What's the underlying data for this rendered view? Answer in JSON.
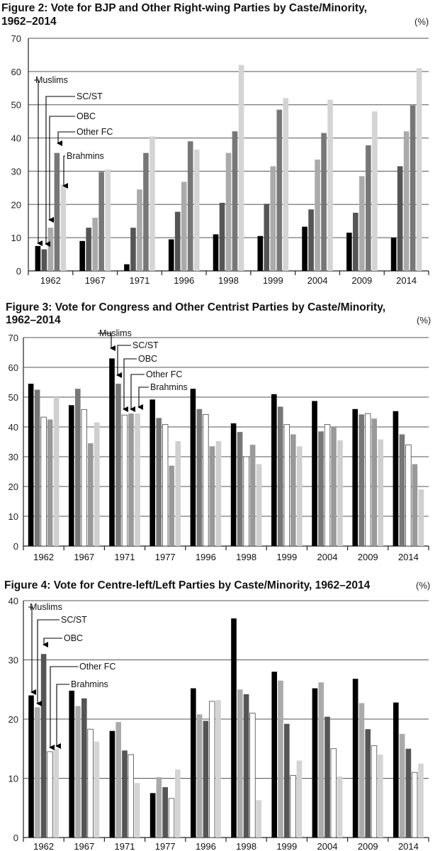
{
  "series_names": [
    "Muslims",
    "SC/ST",
    "OBC",
    "Other FC",
    "Brahmins"
  ],
  "chart_data": [
    {
      "type": "bar",
      "title_line1": "Figure 2: Vote for BJP and Other Right-wing Parties by Caste/Minority,",
      "title_line2": "1962–2014",
      "unit": "(%)",
      "ylim": [
        0,
        70
      ],
      "yticks": [
        "0",
        "10",
        "20",
        "30",
        "40",
        "50",
        "60",
        "70"
      ],
      "categories": [
        "1962",
        "1967",
        "1971",
        "1996",
        "1998",
        "1999",
        "2004",
        "2009",
        "2014"
      ],
      "series": [
        {
          "name": "Muslims",
          "color": "#000000",
          "values": [
            7.5,
            9,
            2,
            9.5,
            11,
            10.5,
            13.3,
            11.5,
            10
          ]
        },
        {
          "name": "SC/ST",
          "color": "#555555",
          "values": [
            6.5,
            13,
            13,
            17.8,
            20.5,
            20.2,
            18.5,
            17.5,
            31.5
          ]
        },
        {
          "name": "OBC",
          "color": "#aaaaaa",
          "values": [
            13,
            16,
            24.5,
            26.8,
            35.5,
            31.5,
            33.5,
            28.5,
            42
          ]
        },
        {
          "name": "Other FC",
          "color": "#777777",
          "values": [
            35.5,
            29.8,
            35.5,
            39,
            42,
            48.5,
            41.5,
            37.8,
            49.8
          ]
        },
        {
          "name": "Brahmins",
          "color": "#d4d4d4",
          "values": [
            26,
            30.5,
            40.5,
            36.5,
            62,
            52,
            51.5,
            48,
            61
          ]
        }
      ],
      "annotations": [
        "Muslims",
        "SC/ST",
        "OBC",
        "Other FC",
        "Brahmins"
      ]
    },
    {
      "type": "bar",
      "title_line1": "Figure 3: Vote for Congress and Other Centrist Parties by Caste/Minority,",
      "title_line2": "1962–2014",
      "unit": "(%)",
      "ylim": [
        0,
        70
      ],
      "yticks": [
        "0",
        "10",
        "20",
        "30",
        "40",
        "50",
        "60",
        "70"
      ],
      "categories": [
        "1962",
        "1967",
        "1971",
        "1977",
        "1996",
        "1998",
        "1999",
        "2004",
        "2009",
        "2014"
      ],
      "series": [
        {
          "name": "Muslims",
          "color": "#000000",
          "values": [
            54.5,
            47.3,
            63,
            49.2,
            52.8,
            41.2,
            51,
            48.7,
            46,
            45.3
          ]
        },
        {
          "name": "SC/ST",
          "color": "#777777",
          "values": [
            52.5,
            52.8,
            54.5,
            43,
            46,
            38.3,
            46.8,
            38.5,
            44.2,
            37.5
          ]
        },
        {
          "name": "OBC",
          "color": "#ffffff",
          "values": [
            43.3,
            45.8,
            44,
            40.8,
            44.2,
            30,
            40.8,
            40.8,
            44.5,
            34
          ]
        },
        {
          "name": "Other FC",
          "color": "#999999",
          "values": [
            42.5,
            34.5,
            44.5,
            27,
            33.5,
            34,
            37.5,
            40,
            42.8,
            27.5
          ]
        },
        {
          "name": "Brahmins",
          "color": "#cfcfcf",
          "values": [
            50,
            41.5,
            44.5,
            35.2,
            35.2,
            27.5,
            33.5,
            35.5,
            35.8,
            19
          ]
        }
      ],
      "annotations": [
        "Muslims",
        "SC/ST",
        "OBC",
        "Other FC",
        "Brahmins"
      ]
    },
    {
      "type": "bar",
      "title_line1": "Figure 4: Vote for Centre-left/Left Parties by Caste/Minority, 1962–2014",
      "title_line2": "",
      "unit": "(%)",
      "ylim": [
        0,
        40
      ],
      "yticks": [
        "0",
        "10",
        "20",
        "30",
        "40"
      ],
      "categories": [
        "1962",
        "1967",
        "1971",
        "1977",
        "1996",
        "1998",
        "1999",
        "2004",
        "2009",
        "2014"
      ],
      "series": [
        {
          "name": "Muslims",
          "color": "#000000",
          "values": [
            24,
            24.8,
            18,
            7.5,
            25.2,
            37,
            28,
            25.2,
            26.8,
            22.8
          ]
        },
        {
          "name": "SC/ST",
          "color": "#aaaaaa",
          "values": [
            22,
            22.2,
            19.5,
            10.2,
            20.8,
            25,
            26.5,
            26.2,
            22.7,
            17.5
          ]
        },
        {
          "name": "OBC",
          "color": "#555555",
          "values": [
            31,
            23.5,
            14.7,
            8.5,
            19.7,
            24.2,
            19.2,
            20.4,
            18.3,
            15
          ]
        },
        {
          "name": "Other FC",
          "color": "#ffffff",
          "values": [
            14.5,
            18.3,
            14,
            6.6,
            23,
            21,
            10.5,
            15,
            15.5,
            11
          ]
        },
        {
          "name": "Brahmins",
          "color": "#d4d4d4",
          "values": [
            15,
            16.2,
            9.2,
            11.5,
            23.2,
            6.3,
            13,
            10.3,
            14,
            12.5
          ]
        }
      ],
      "annotations": [
        "Muslims",
        "SC/ST",
        "OBC",
        "Other FC",
        "Brahmins"
      ]
    }
  ]
}
